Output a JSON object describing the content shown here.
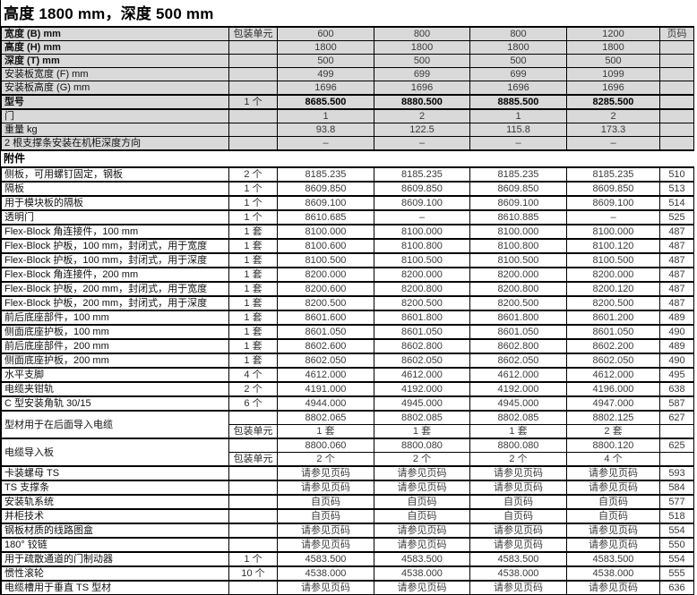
{
  "title": "高度 1800 mm，深度 500 mm",
  "colors": {
    "row_bg": "#d9d9d9",
    "border": "#000000",
    "value_text": "#3a3a3a"
  },
  "spec_table": {
    "rows": [
      {
        "label": "宽度 (B) mm",
        "bold": true,
        "unit": "包装单元",
        "values": [
          "600",
          "800",
          "800",
          "1200"
        ],
        "page": "页码"
      },
      {
        "label": "高度 (H) mm",
        "bold": true,
        "unit": "",
        "values": [
          "1800",
          "1800",
          "1800",
          "1800"
        ],
        "page": ""
      },
      {
        "label": "深度 (T) mm",
        "bold": true,
        "unit": "",
        "values": [
          "500",
          "500",
          "500",
          "500"
        ],
        "page": ""
      },
      {
        "label": "安装板宽度 (F) mm",
        "bold": false,
        "unit": "",
        "values": [
          "499",
          "699",
          "699",
          "1099"
        ],
        "page": ""
      },
      {
        "label": "安装板高度 (G) mm",
        "bold": false,
        "unit": "",
        "values": [
          "1696",
          "1696",
          "1696",
          "1696"
        ],
        "page": ""
      },
      {
        "label": "型号",
        "bold": true,
        "bold_values": true,
        "thick": true,
        "unit": "1 个",
        "values": [
          "8685.500",
          "8880.500",
          "8885.500",
          "8285.500"
        ],
        "page": ""
      },
      {
        "label": "门",
        "bold": false,
        "unit": "",
        "values": [
          "1",
          "2",
          "1",
          "2"
        ],
        "page": ""
      },
      {
        "label": "重量 kg",
        "bold": false,
        "unit": "",
        "values": [
          "93.8",
          "122.5",
          "115.8",
          "173.3"
        ],
        "page": ""
      },
      {
        "label": "2 根支撑条安装在机柜深度方向",
        "bold": false,
        "unit": "",
        "values": [
          "–",
          "–",
          "–",
          "–"
        ],
        "page": ""
      }
    ]
  },
  "accessories": {
    "header": "附件",
    "entries": [
      {
        "label": "侧板，可用螺钉固定，钢板",
        "lines": [
          {
            "unit": "2 个",
            "values": [
              "8185.235",
              "8185.235",
              "8185.235",
              "8185.235"
            ],
            "page": "510"
          }
        ]
      },
      {
        "label": "隔板",
        "lines": [
          {
            "unit": "1 个",
            "values": [
              "8609.850",
              "8609.850",
              "8609.850",
              "8609.850"
            ],
            "page": "513"
          }
        ]
      },
      {
        "label": "用于模块板的隔板",
        "lines": [
          {
            "unit": "1 个",
            "values": [
              "8609.100",
              "8609.100",
              "8609.100",
              "8609.100"
            ],
            "page": "514"
          }
        ]
      },
      {
        "label": "透明门",
        "lines": [
          {
            "unit": "1 个",
            "values": [
              "8610.685",
              "–",
              "8610.885",
              "–"
            ],
            "page": "525"
          }
        ]
      },
      {
        "label": "Flex-Block 角连接件，100 mm",
        "lines": [
          {
            "unit": "1 套",
            "values": [
              "8100.000",
              "8100.000",
              "8100.000",
              "8100.000"
            ],
            "page": "487"
          }
        ]
      },
      {
        "label": "Flex-Block 护板，100 mm，封闭式，用于宽度",
        "lines": [
          {
            "unit": "1 套",
            "values": [
              "8100.600",
              "8100.800",
              "8100.800",
              "8100.120"
            ],
            "page": "487"
          }
        ]
      },
      {
        "label": "Flex-Block 护板，100 mm，封闭式，用于深度",
        "lines": [
          {
            "unit": "1 套",
            "values": [
              "8100.500",
              "8100.500",
              "8100.500",
              "8100.500"
            ],
            "page": "487"
          }
        ]
      },
      {
        "label": "Flex-Block 角连接件，200 mm",
        "lines": [
          {
            "unit": "1 套",
            "values": [
              "8200.000",
              "8200.000",
              "8200.000",
              "8200.000"
            ],
            "page": "487"
          }
        ]
      },
      {
        "label": "Flex-Block 护板，200 mm，封闭式，用于宽度",
        "lines": [
          {
            "unit": "1 套",
            "values": [
              "8200.600",
              "8200.800",
              "8200.800",
              "8200.120"
            ],
            "page": "487"
          }
        ]
      },
      {
        "label": "Flex-Block 护板，200 mm，封闭式，用于深度",
        "lines": [
          {
            "unit": "1 套",
            "values": [
              "8200.500",
              "8200.500",
              "8200.500",
              "8200.500"
            ],
            "page": "487"
          }
        ]
      },
      {
        "label": "前后底座部件，100 mm",
        "lines": [
          {
            "unit": "1 套",
            "values": [
              "8601.600",
              "8601.800",
              "8601.800",
              "8601.200"
            ],
            "page": "489"
          }
        ]
      },
      {
        "label": "侧面底座护板，100 mm",
        "lines": [
          {
            "unit": "1 套",
            "values": [
              "8601.050",
              "8601.050",
              "8601.050",
              "8601.050"
            ],
            "page": "490"
          }
        ]
      },
      {
        "label": "前后底座部件，200 mm",
        "lines": [
          {
            "unit": "1 套",
            "values": [
              "8602.600",
              "8602.800",
              "8602.800",
              "8602.200"
            ],
            "page": "489"
          }
        ]
      },
      {
        "label": "侧面底座护板，200 mm",
        "lines": [
          {
            "unit": "1 套",
            "values": [
              "8602.050",
              "8602.050",
              "8602.050",
              "8602.050"
            ],
            "page": "490"
          }
        ]
      },
      {
        "label": "水平支脚",
        "lines": [
          {
            "unit": "4 个",
            "values": [
              "4612.000",
              "4612.000",
              "4612.000",
              "4612.000"
            ],
            "page": "495"
          }
        ]
      },
      {
        "label": "电缆夹钳轨",
        "lines": [
          {
            "unit": "2 个",
            "values": [
              "4191.000",
              "4192.000",
              "4192.000",
              "4196.000"
            ],
            "page": "638"
          }
        ]
      },
      {
        "label": "C 型安装角轨 30/15",
        "lines": [
          {
            "unit": "6 个",
            "values": [
              "4944.000",
              "4945.000",
              "4945.000",
              "4947.000"
            ],
            "page": "587"
          }
        ]
      },
      {
        "label": "型材用于在后面导入电缆",
        "lines": [
          {
            "unit": "",
            "values": [
              "8802.065",
              "8802.085",
              "8802.085",
              "8802.125"
            ],
            "page": "627"
          },
          {
            "unit": "包装单元",
            "values": [
              "1 套",
              "1 套",
              "1 套",
              "2 套"
            ],
            "page": ""
          }
        ]
      },
      {
        "label": "电缆导入板",
        "lines": [
          {
            "unit": "",
            "values": [
              "8800.060",
              "8800.080",
              "8800.080",
              "8800.120"
            ],
            "page": "625"
          },
          {
            "unit": "包装单元",
            "values": [
              "2 个",
              "2 个",
              "2 个",
              "4 个"
            ],
            "page": ""
          }
        ]
      },
      {
        "label": "卡装螺母 TS",
        "lines": [
          {
            "unit": "",
            "values": [
              "请参见页码",
              "请参见页码",
              "请参见页码",
              "请参见页码"
            ],
            "page": "593"
          }
        ]
      },
      {
        "label": "TS 支撑条",
        "lines": [
          {
            "unit": "",
            "values": [
              "请参见页码",
              "请参见页码",
              "请参见页码",
              "请参见页码"
            ],
            "page": "584"
          }
        ]
      },
      {
        "label": "安装轨系统",
        "lines": [
          {
            "unit": "",
            "values": [
              "自页码",
              "自页码",
              "自页码",
              "自页码"
            ],
            "page": "577"
          }
        ]
      },
      {
        "label": "并柜技术",
        "lines": [
          {
            "unit": "",
            "values": [
              "自页码",
              "自页码",
              "自页码",
              "自页码"
            ],
            "page": "518"
          }
        ]
      },
      {
        "label": "钢板材质的线路图盒",
        "lines": [
          {
            "unit": "",
            "values": [
              "请参见页码",
              "请参见页码",
              "请参见页码",
              "请参见页码"
            ],
            "page": "554"
          }
        ]
      },
      {
        "label": "180° 铰链",
        "lines": [
          {
            "unit": "",
            "values": [
              "请参见页码",
              "请参见页码",
              "请参见页码",
              "请参见页码"
            ],
            "page": "550"
          }
        ]
      },
      {
        "label": "用于疏散通道的门制动器",
        "lines": [
          {
            "unit": "1 个",
            "values": [
              "4583.500",
              "4583.500",
              "4583.500",
              "4583.500"
            ],
            "page": "554"
          }
        ]
      },
      {
        "label": "惯性滚轮",
        "lines": [
          {
            "unit": "10 个",
            "values": [
              "4538.000",
              "4538.000",
              "4538.000",
              "4538.000"
            ],
            "page": "555"
          }
        ]
      },
      {
        "label": "电缆槽用于垂直 TS 型材",
        "lines": [
          {
            "unit": "",
            "values": [
              "请参见页码",
              "请参见页码",
              "请参见页码",
              "请参见页码"
            ],
            "page": "636"
          }
        ]
      }
    ]
  }
}
